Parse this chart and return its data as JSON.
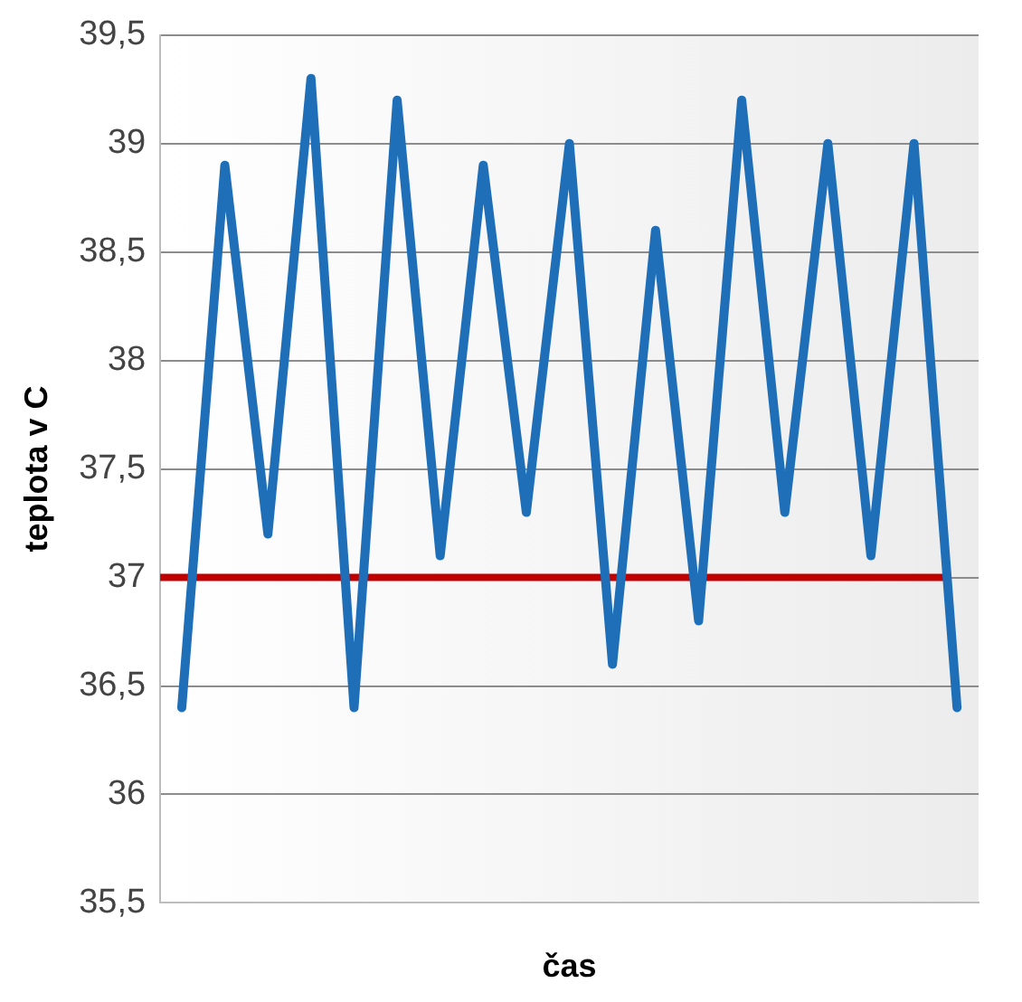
{
  "chart_data": {
    "type": "line",
    "xlabel": "čas",
    "ylabel": "teplota v C",
    "categories": [
      null,
      null,
      null,
      null,
      null,
      null,
      null,
      null,
      null,
      null,
      null,
      null,
      null,
      null,
      null,
      null,
      null,
      null,
      null
    ],
    "series": [
      {
        "color": "#1f6fb8",
        "values": [
          36.4,
          38.9,
          37.2,
          39.3,
          36.4,
          39.2,
          37.1,
          38.9,
          37.3,
          39.0,
          36.6,
          38.6,
          36.8,
          39.2,
          37.3,
          39.0,
          37.1,
          39.0,
          36.4
        ]
      }
    ],
    "ref_lines": [
      {
        "axis": "y",
        "value": 37,
        "color": "#c00000"
      }
    ],
    "ylim": [
      35.5,
      39.5
    ],
    "yticks": [
      {
        "value": 35.5,
        "label": "35,5"
      },
      36,
      {
        "value": 36.5,
        "label": "36,5"
      },
      37,
      {
        "value": 37.5,
        "label": "37,5"
      },
      38,
      {
        "value": 38.5,
        "label": "38,5"
      },
      39,
      {
        "value": 39.5,
        "label": "39,5"
      }
    ],
    "grid": "y",
    "legend": false,
    "marker": "none",
    "line_style": "solid"
  }
}
